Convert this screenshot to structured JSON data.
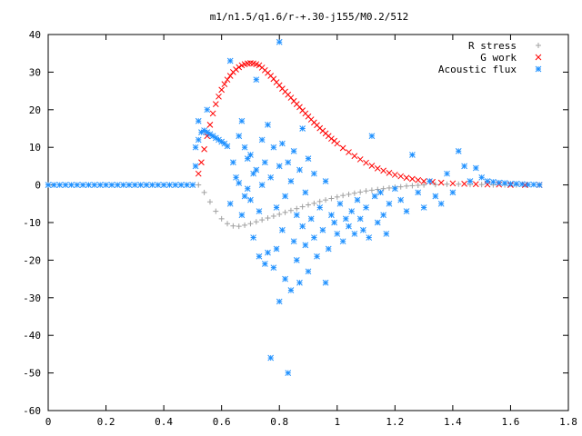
{
  "chart_data": {
    "type": "scatter",
    "title": "m1/n1.5/q1.6/r-+.30-j155/M0.2/512",
    "xlabel": "",
    "ylabel": "",
    "xlim": [
      0,
      1.8
    ],
    "ylim": [
      -60,
      40
    ],
    "xticks": [
      0,
      0.2,
      0.4,
      0.6,
      0.8,
      1,
      1.2,
      1.4,
      1.6,
      1.8
    ],
    "yticks": [
      -60,
      -50,
      -40,
      -30,
      -20,
      -10,
      0,
      10,
      20,
      30,
      40
    ],
    "legend_position": "top-right",
    "grid": false,
    "series": [
      {
        "name": "R stress",
        "marker": "plus",
        "color": "#a0a0a0",
        "points": [
          [
            0.52,
            0.0
          ],
          [
            0.54,
            -2.0
          ],
          [
            0.56,
            -4.5
          ],
          [
            0.58,
            -7.0
          ],
          [
            0.6,
            -9.0
          ],
          [
            0.62,
            -10.3
          ],
          [
            0.64,
            -10.9
          ],
          [
            0.66,
            -11.0
          ],
          [
            0.68,
            -10.7
          ],
          [
            0.7,
            -10.3
          ],
          [
            0.72,
            -9.8
          ],
          [
            0.74,
            -9.3
          ],
          [
            0.76,
            -8.8
          ],
          [
            0.78,
            -8.3
          ],
          [
            0.8,
            -7.8
          ],
          [
            0.82,
            -7.3
          ],
          [
            0.84,
            -6.8
          ],
          [
            0.86,
            -6.3
          ],
          [
            0.88,
            -5.8
          ],
          [
            0.9,
            -5.3
          ],
          [
            0.92,
            -4.9
          ],
          [
            0.94,
            -4.4
          ],
          [
            0.96,
            -4.0
          ],
          [
            0.98,
            -3.6
          ],
          [
            1.0,
            -3.2
          ],
          [
            1.02,
            -2.8
          ],
          [
            1.04,
            -2.5
          ],
          [
            1.06,
            -2.2
          ],
          [
            1.08,
            -1.9
          ],
          [
            1.1,
            -1.6
          ],
          [
            1.12,
            -1.4
          ],
          [
            1.14,
            -1.2
          ],
          [
            1.16,
            -1.0
          ],
          [
            1.18,
            -0.8
          ],
          [
            1.2,
            -0.6
          ],
          [
            1.22,
            -0.5
          ],
          [
            1.24,
            -0.3
          ],
          [
            1.26,
            -0.2
          ],
          [
            1.28,
            -0.1
          ],
          [
            1.3,
            0.0
          ],
          [
            1.34,
            0.1
          ],
          [
            1.38,
            0.2
          ],
          [
            1.42,
            0.2
          ],
          [
            1.46,
            0.1
          ],
          [
            1.5,
            0.1
          ],
          [
            1.54,
            0.0
          ],
          [
            1.58,
            0.0
          ],
          [
            1.62,
            0.0
          ],
          [
            1.66,
            0.0
          ],
          [
            1.7,
            0.0
          ]
        ]
      },
      {
        "name": "G work",
        "marker": "cross",
        "color": "#ff0000",
        "points": [
          [
            0.52,
            3.0
          ],
          [
            0.53,
            6.0
          ],
          [
            0.54,
            9.5
          ],
          [
            0.55,
            13.0
          ],
          [
            0.56,
            16.0
          ],
          [
            0.57,
            19.0
          ],
          [
            0.58,
            21.5
          ],
          [
            0.59,
            23.5
          ],
          [
            0.6,
            25.3
          ],
          [
            0.61,
            26.8
          ],
          [
            0.62,
            28.0
          ],
          [
            0.63,
            29.0
          ],
          [
            0.64,
            30.0
          ],
          [
            0.65,
            30.7
          ],
          [
            0.66,
            31.3
          ],
          [
            0.67,
            31.8
          ],
          [
            0.68,
            32.1
          ],
          [
            0.69,
            32.3
          ],
          [
            0.7,
            32.4
          ],
          [
            0.71,
            32.3
          ],
          [
            0.72,
            32.1
          ],
          [
            0.73,
            31.8
          ],
          [
            0.74,
            31.2
          ],
          [
            0.75,
            30.5
          ],
          [
            0.76,
            29.8
          ],
          [
            0.77,
            29.0
          ],
          [
            0.78,
            28.2
          ],
          [
            0.79,
            27.3
          ],
          [
            0.8,
            26.5
          ],
          [
            0.81,
            25.6
          ],
          [
            0.82,
            24.8
          ],
          [
            0.83,
            24.0
          ],
          [
            0.84,
            23.2
          ],
          [
            0.85,
            22.3
          ],
          [
            0.86,
            21.5
          ],
          [
            0.87,
            20.7
          ],
          [
            0.88,
            19.8
          ],
          [
            0.89,
            19.0
          ],
          [
            0.9,
            18.2
          ],
          [
            0.91,
            17.4
          ],
          [
            0.92,
            16.6
          ],
          [
            0.93,
            15.9
          ],
          [
            0.94,
            15.1
          ],
          [
            0.95,
            14.4
          ],
          [
            0.96,
            13.7
          ],
          [
            0.97,
            13.0
          ],
          [
            0.98,
            12.3
          ],
          [
            0.99,
            11.7
          ],
          [
            1.0,
            11.0
          ],
          [
            1.02,
            9.8
          ],
          [
            1.04,
            8.7
          ],
          [
            1.06,
            7.7
          ],
          [
            1.08,
            6.8
          ],
          [
            1.1,
            5.9
          ],
          [
            1.12,
            5.1
          ],
          [
            1.14,
            4.4
          ],
          [
            1.16,
            3.8
          ],
          [
            1.18,
            3.2
          ],
          [
            1.2,
            2.7
          ],
          [
            1.22,
            2.3
          ],
          [
            1.24,
            1.9
          ],
          [
            1.26,
            1.6
          ],
          [
            1.28,
            1.3
          ],
          [
            1.3,
            1.0
          ],
          [
            1.33,
            0.8
          ],
          [
            1.36,
            0.6
          ],
          [
            1.4,
            0.4
          ],
          [
            1.44,
            0.3
          ],
          [
            1.48,
            0.2
          ],
          [
            1.52,
            0.1
          ],
          [
            1.56,
            0.1
          ],
          [
            1.6,
            0.0
          ],
          [
            1.65,
            0.0
          ],
          [
            1.7,
            0.0
          ]
        ]
      },
      {
        "name": "Acoustic flux",
        "marker": "star",
        "color": "#1e90ff",
        "points": [
          [
            0.0,
            0.0
          ],
          [
            0.02,
            0.0
          ],
          [
            0.04,
            0.0
          ],
          [
            0.06,
            0.0
          ],
          [
            0.08,
            0.0
          ],
          [
            0.1,
            0.0
          ],
          [
            0.12,
            0.0
          ],
          [
            0.14,
            0.0
          ],
          [
            0.16,
            0.0
          ],
          [
            0.18,
            0.0
          ],
          [
            0.2,
            0.0
          ],
          [
            0.22,
            0.0
          ],
          [
            0.24,
            0.0
          ],
          [
            0.26,
            0.0
          ],
          [
            0.28,
            0.0
          ],
          [
            0.3,
            0.0
          ],
          [
            0.32,
            0.0
          ],
          [
            0.34,
            0.0
          ],
          [
            0.36,
            0.0
          ],
          [
            0.38,
            0.0
          ],
          [
            0.4,
            0.0
          ],
          [
            0.42,
            0.0
          ],
          [
            0.44,
            0.0
          ],
          [
            0.46,
            0.0
          ],
          [
            0.48,
            0.0
          ],
          [
            0.5,
            0.0
          ],
          [
            0.51,
            10.0
          ],
          [
            0.52,
            12.0
          ],
          [
            0.53,
            14.0
          ],
          [
            0.54,
            14.5
          ],
          [
            0.55,
            14.0
          ],
          [
            0.56,
            13.5
          ],
          [
            0.57,
            13.0
          ],
          [
            0.58,
            12.5
          ],
          [
            0.59,
            12.0
          ],
          [
            0.6,
            11.5
          ],
          [
            0.61,
            11.0
          ],
          [
            0.62,
            10.3
          ],
          [
            0.51,
            5.0
          ],
          [
            0.52,
            17.0
          ],
          [
            0.55,
            20.0
          ],
          [
            0.63,
            -5.0
          ],
          [
            0.63,
            33.0
          ],
          [
            0.64,
            6.0
          ],
          [
            0.65,
            2.0
          ],
          [
            0.66,
            13.0
          ],
          [
            0.66,
            0.5
          ],
          [
            0.67,
            -8.0
          ],
          [
            0.67,
            17.0
          ],
          [
            0.68,
            10.0
          ],
          [
            0.68,
            -3.0
          ],
          [
            0.69,
            7.0
          ],
          [
            0.69,
            -1.0
          ],
          [
            0.7,
            8.0
          ],
          [
            0.7,
            -4.0
          ],
          [
            0.71,
            3.0
          ],
          [
            0.71,
            -14.0
          ],
          [
            0.72,
            28.0
          ],
          [
            0.72,
            4.0
          ],
          [
            0.73,
            -19.0
          ],
          [
            0.73,
            -7.0
          ],
          [
            0.74,
            12.0
          ],
          [
            0.74,
            0.0
          ],
          [
            0.75,
            -21.0
          ],
          [
            0.75,
            6.0
          ],
          [
            0.76,
            -18.0
          ],
          [
            0.76,
            16.0
          ],
          [
            0.77,
            -46.0
          ],
          [
            0.77,
            2.0
          ],
          [
            0.78,
            -22.0
          ],
          [
            0.78,
            10.0
          ],
          [
            0.79,
            -17.0
          ],
          [
            0.79,
            -6.0
          ],
          [
            0.8,
            -31.0
          ],
          [
            0.8,
            38.0
          ],
          [
            0.8,
            5.0
          ],
          [
            0.81,
            -12.0
          ],
          [
            0.81,
            11.0
          ],
          [
            0.82,
            -25.0
          ],
          [
            0.82,
            -3.0
          ],
          [
            0.83,
            -50.0
          ],
          [
            0.83,
            6.0
          ],
          [
            0.84,
            -28.0
          ],
          [
            0.84,
            1.0
          ],
          [
            0.85,
            -15.0
          ],
          [
            0.85,
            9.0
          ],
          [
            0.86,
            -20.0
          ],
          [
            0.86,
            -8.0
          ],
          [
            0.87,
            -26.0
          ],
          [
            0.87,
            4.0
          ],
          [
            0.88,
            -11.0
          ],
          [
            0.88,
            15.0
          ],
          [
            0.89,
            -16.0
          ],
          [
            0.89,
            -2.0
          ],
          [
            0.9,
            -23.0
          ],
          [
            0.9,
            7.0
          ],
          [
            0.91,
            -9.0
          ],
          [
            0.92,
            -14.0
          ],
          [
            0.92,
            3.0
          ],
          [
            0.93,
            -19.0
          ],
          [
            0.94,
            -6.0
          ],
          [
            0.95,
            -12.0
          ],
          [
            0.96,
            -26.0
          ],
          [
            0.96,
            1.0
          ],
          [
            0.97,
            -17.0
          ],
          [
            0.98,
            -8.0
          ],
          [
            0.99,
            -10.0
          ],
          [
            1.0,
            -13.0
          ],
          [
            1.01,
            -5.0
          ],
          [
            1.02,
            -15.0
          ],
          [
            1.03,
            -9.0
          ],
          [
            1.04,
            -11.0
          ],
          [
            1.05,
            -7.0
          ],
          [
            1.06,
            -13.0
          ],
          [
            1.07,
            -4.0
          ],
          [
            1.08,
            -9.0
          ],
          [
            1.09,
            -12.0
          ],
          [
            1.1,
            -6.0
          ],
          [
            1.11,
            -14.0
          ],
          [
            1.12,
            13.0
          ],
          [
            1.13,
            -3.0
          ],
          [
            1.14,
            -10.0
          ],
          [
            1.15,
            -2.0
          ],
          [
            1.16,
            -8.0
          ],
          [
            1.17,
            -13.0
          ],
          [
            1.18,
            -5.0
          ],
          [
            1.2,
            -1.0
          ],
          [
            1.22,
            -4.0
          ],
          [
            1.24,
            -7.0
          ],
          [
            1.26,
            8.0
          ],
          [
            1.28,
            -2.0
          ],
          [
            1.3,
            -6.0
          ],
          [
            1.32,
            1.0
          ],
          [
            1.34,
            -3.0
          ],
          [
            1.36,
            -5.0
          ],
          [
            1.38,
            3.0
          ],
          [
            1.4,
            -2.0
          ],
          [
            1.42,
            9.0
          ],
          [
            1.44,
            5.0
          ],
          [
            1.46,
            1.0
          ],
          [
            1.48,
            4.5
          ],
          [
            1.5,
            2.0
          ],
          [
            1.52,
            1.0
          ],
          [
            1.54,
            0.8
          ],
          [
            1.56,
            0.6
          ],
          [
            1.58,
            0.5
          ],
          [
            1.6,
            0.3
          ],
          [
            1.62,
            0.3
          ],
          [
            1.64,
            0.2
          ],
          [
            1.66,
            0.1
          ],
          [
            1.68,
            0.1
          ],
          [
            1.7,
            0.0
          ]
        ]
      }
    ]
  }
}
